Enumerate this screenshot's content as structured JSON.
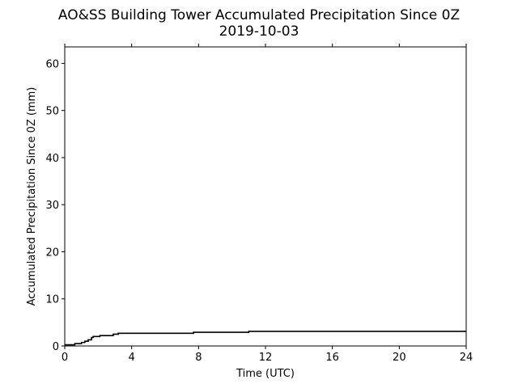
{
  "chart_data": {
    "type": "line",
    "title": "AO&SS Building Tower Accumulated Precipitation Since 0Z",
    "subtitle": "2019-10-03",
    "xlabel": "Time (UTC)",
    "ylabel": "Accumulated Precipitation Since 0Z (mm)",
    "xlim": [
      0,
      24
    ],
    "ylim": [
      0,
      63.5
    ],
    "xticks": [
      0,
      4,
      8,
      12,
      16,
      20,
      24
    ],
    "yticks": [
      0,
      10,
      20,
      30,
      40,
      50,
      60
    ],
    "grid": false,
    "line_color": "#000000",
    "step": true,
    "series": [
      {
        "x": [
          0,
          0.6,
          1.0,
          1.2,
          1.4,
          1.6,
          1.7,
          2.1,
          2.9,
          3.2,
          7.7,
          11.0,
          24
        ],
        "y": [
          0.25,
          0.5,
          0.75,
          1.0,
          1.3,
          1.8,
          2.0,
          2.2,
          2.5,
          2.7,
          2.9,
          3.1,
          3.1
        ]
      }
    ]
  }
}
